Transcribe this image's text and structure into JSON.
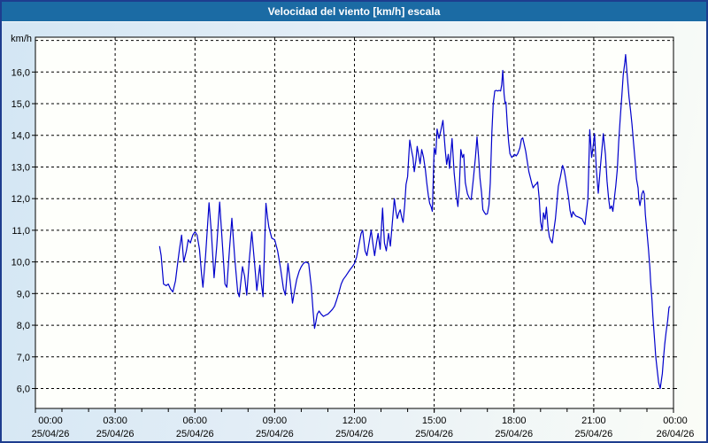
{
  "window": {
    "title": "Velocidad del viento [km/h] escala"
  },
  "colors": {
    "titlebar_bg": "#1b6ba4",
    "titlebar_text": "#ffffff",
    "window_border": "#1e3d8f",
    "bg_gradient_left": "#d3e6f4",
    "bg_gradient_right": "#fbfdf7",
    "plot_bg": "#fefffb",
    "grid_color": "#000000",
    "line_color": "#0000cc",
    "axis_text": "#000000"
  },
  "chart_data": {
    "type": "line",
    "title": "Velocidad del viento [km/h] escala",
    "unit_label": "km/h",
    "grid_style": "dashed",
    "legend": "none",
    "x_range_hours": [
      0,
      24
    ],
    "x_minor_tick_hours": 1,
    "x_major_ticks": [
      {
        "hours": 0,
        "time": "00:00",
        "date": "25/04/26"
      },
      {
        "hours": 3,
        "time": "03:00",
        "date": "25/04/26"
      },
      {
        "hours": 6,
        "time": "06:00",
        "date": "25/04/26"
      },
      {
        "hours": 9,
        "time": "09:00",
        "date": "25/04/26"
      },
      {
        "hours": 12,
        "time": "12:00",
        "date": "25/04/26"
      },
      {
        "hours": 15,
        "time": "15:00",
        "date": "25/04/26"
      },
      {
        "hours": 18,
        "time": "18:00",
        "date": "25/04/26"
      },
      {
        "hours": 21,
        "time": "21:00",
        "date": "25/04/26"
      },
      {
        "hours": 24,
        "time": "00:00",
        "date": "26/04/26"
      }
    ],
    "y_ticks": [
      {
        "value": 16,
        "label": "16,0"
      },
      {
        "value": 15,
        "label": "15,0"
      },
      {
        "value": 14,
        "label": "14,0"
      },
      {
        "value": 13,
        "label": "13,0"
      },
      {
        "value": 12,
        "label": "12,0"
      },
      {
        "value": 11,
        "label": "11,0"
      },
      {
        "value": 10,
        "label": "10,0"
      },
      {
        "value": 9,
        "label": "9,0"
      },
      {
        "value": 8,
        "label": "8,0"
      },
      {
        "value": 7,
        "label": "7,0"
      },
      {
        "value": 6,
        "label": "6,0"
      }
    ],
    "y_gridline_values": [
      17,
      16,
      15,
      14,
      13,
      12,
      11,
      10,
      9,
      8,
      7,
      6
    ],
    "y_top_value": 17.1,
    "y_bottom_value": 5.37,
    "series": [
      {
        "name": "Velocidad del viento",
        "color": "#0000cc",
        "points": [
          [
            4.67,
            10.5
          ],
          [
            4.73,
            10.2
          ],
          [
            4.82,
            9.3
          ],
          [
            4.92,
            9.25
          ],
          [
            5.0,
            9.3
          ],
          [
            5.08,
            9.15
          ],
          [
            5.17,
            9.05
          ],
          [
            5.27,
            9.4
          ],
          [
            5.35,
            9.95
          ],
          [
            5.42,
            10.4
          ],
          [
            5.5,
            10.85
          ],
          [
            5.58,
            10.0
          ],
          [
            5.68,
            10.35
          ],
          [
            5.75,
            10.7
          ],
          [
            5.83,
            10.6
          ],
          [
            5.92,
            10.85
          ],
          [
            6.0,
            10.95
          ],
          [
            6.08,
            10.85
          ],
          [
            6.17,
            10.4
          ],
          [
            6.25,
            9.6
          ],
          [
            6.3,
            9.2
          ],
          [
            6.4,
            10.2
          ],
          [
            6.47,
            11.1
          ],
          [
            6.53,
            11.87
          ],
          [
            6.62,
            10.9
          ],
          [
            6.72,
            9.5
          ],
          [
            6.82,
            10.5
          ],
          [
            6.93,
            11.89
          ],
          [
            7.03,
            10.6
          ],
          [
            7.13,
            9.3
          ],
          [
            7.2,
            9.2
          ],
          [
            7.3,
            10.4
          ],
          [
            7.39,
            11.38
          ],
          [
            7.5,
            10.1
          ],
          [
            7.61,
            9.05
          ],
          [
            7.67,
            8.9
          ],
          [
            7.79,
            9.85
          ],
          [
            7.87,
            9.55
          ],
          [
            7.95,
            8.95
          ],
          [
            8.05,
            10.1
          ],
          [
            8.14,
            10.95
          ],
          [
            8.24,
            10.0
          ],
          [
            8.33,
            9.1
          ],
          [
            8.44,
            9.9
          ],
          [
            8.5,
            9.3
          ],
          [
            8.56,
            8.9
          ],
          [
            8.67,
            11.85
          ],
          [
            8.73,
            11.4
          ],
          [
            8.78,
            11.1
          ],
          [
            8.89,
            10.75
          ],
          [
            9.0,
            10.7
          ],
          [
            9.11,
            10.35
          ],
          [
            9.22,
            9.8
          ],
          [
            9.33,
            9.15
          ],
          [
            9.4,
            8.95
          ],
          [
            9.5,
            9.95
          ],
          [
            9.58,
            9.4
          ],
          [
            9.67,
            8.7
          ],
          [
            9.75,
            9.1
          ],
          [
            9.83,
            9.45
          ],
          [
            9.92,
            9.7
          ],
          [
            10.0,
            9.85
          ],
          [
            10.08,
            9.95
          ],
          [
            10.17,
            10.0
          ],
          [
            10.28,
            9.95
          ],
          [
            10.38,
            9.2
          ],
          [
            10.45,
            8.4
          ],
          [
            10.5,
            7.9
          ],
          [
            10.55,
            8.1
          ],
          [
            10.6,
            8.35
          ],
          [
            10.67,
            8.45
          ],
          [
            10.75,
            8.35
          ],
          [
            10.83,
            8.28
          ],
          [
            10.92,
            8.32
          ],
          [
            11.0,
            8.35
          ],
          [
            11.08,
            8.42
          ],
          [
            11.17,
            8.5
          ],
          [
            11.25,
            8.6
          ],
          [
            11.33,
            8.8
          ],
          [
            11.42,
            9.05
          ],
          [
            11.5,
            9.3
          ],
          [
            11.58,
            9.45
          ],
          [
            11.67,
            9.55
          ],
          [
            11.75,
            9.65
          ],
          [
            11.83,
            9.75
          ],
          [
            11.92,
            9.85
          ],
          [
            12.0,
            9.95
          ],
          [
            12.08,
            10.15
          ],
          [
            12.17,
            10.55
          ],
          [
            12.25,
            10.9
          ],
          [
            12.31,
            11.0
          ],
          [
            12.4,
            10.35
          ],
          [
            12.47,
            10.2
          ],
          [
            12.55,
            10.6
          ],
          [
            12.63,
            11.0
          ],
          [
            12.7,
            10.55
          ],
          [
            12.76,
            10.2
          ],
          [
            12.83,
            10.6
          ],
          [
            12.89,
            10.9
          ],
          [
            12.97,
            10.4
          ],
          [
            13.06,
            11.7
          ],
          [
            13.13,
            10.6
          ],
          [
            13.2,
            10.35
          ],
          [
            13.28,
            10.9
          ],
          [
            13.35,
            10.5
          ],
          [
            13.42,
            11.2
          ],
          [
            13.5,
            12.0
          ],
          [
            13.56,
            11.6
          ],
          [
            13.61,
            11.37
          ],
          [
            13.67,
            11.55
          ],
          [
            13.72,
            11.65
          ],
          [
            13.78,
            11.4
          ],
          [
            13.83,
            11.25
          ],
          [
            13.89,
            11.8
          ],
          [
            13.94,
            12.45
          ],
          [
            14.0,
            12.7
          ],
          [
            14.04,
            13.3
          ],
          [
            14.08,
            13.85
          ],
          [
            14.14,
            13.55
          ],
          [
            14.2,
            13.3
          ],
          [
            14.25,
            12.85
          ],
          [
            14.31,
            13.2
          ],
          [
            14.36,
            13.65
          ],
          [
            14.42,
            13.35
          ],
          [
            14.47,
            13.1
          ],
          [
            14.53,
            13.55
          ],
          [
            14.6,
            13.3
          ],
          [
            14.67,
            12.9
          ],
          [
            14.72,
            12.5
          ],
          [
            14.78,
            12.1
          ],
          [
            14.83,
            11.85
          ],
          [
            14.89,
            11.73
          ],
          [
            14.93,
            11.6
          ],
          [
            15.0,
            13.6
          ],
          [
            15.06,
            13.4
          ],
          [
            15.11,
            14.2
          ],
          [
            15.18,
            13.9
          ],
          [
            15.25,
            14.15
          ],
          [
            15.33,
            14.47
          ],
          [
            15.42,
            13.5
          ],
          [
            15.47,
            13.08
          ],
          [
            15.53,
            13.4
          ],
          [
            15.58,
            12.95
          ],
          [
            15.67,
            13.9
          ],
          [
            15.75,
            12.8
          ],
          [
            15.83,
            12.1
          ],
          [
            15.89,
            11.75
          ],
          [
            15.94,
            12.3
          ],
          [
            16.0,
            13.55
          ],
          [
            16.06,
            13.3
          ],
          [
            16.11,
            13.4
          ],
          [
            16.17,
            12.5
          ],
          [
            16.25,
            12.15
          ],
          [
            16.33,
            12.0
          ],
          [
            16.39,
            11.97
          ],
          [
            16.47,
            12.6
          ],
          [
            16.55,
            13.3
          ],
          [
            16.61,
            13.95
          ],
          [
            16.67,
            13.3
          ],
          [
            16.72,
            12.66
          ],
          [
            16.78,
            12.2
          ],
          [
            16.83,
            11.65
          ],
          [
            16.89,
            11.56
          ],
          [
            16.94,
            11.5
          ],
          [
            17.0,
            11.52
          ],
          [
            17.06,
            11.8
          ],
          [
            17.11,
            12.5
          ],
          [
            17.17,
            14.1
          ],
          [
            17.22,
            15.0
          ],
          [
            17.28,
            15.4
          ],
          [
            17.33,
            15.42
          ],
          [
            17.39,
            15.4
          ],
          [
            17.44,
            15.42
          ],
          [
            17.5,
            15.4
          ],
          [
            17.54,
            15.6
          ],
          [
            17.58,
            16.05
          ],
          [
            17.63,
            15.3
          ],
          [
            17.67,
            15.0
          ],
          [
            17.7,
            15.05
          ],
          [
            17.75,
            14.35
          ],
          [
            17.8,
            13.8
          ],
          [
            17.85,
            13.42
          ],
          [
            17.92,
            13.3
          ],
          [
            17.97,
            13.35
          ],
          [
            18.03,
            13.4
          ],
          [
            18.08,
            13.35
          ],
          [
            18.14,
            13.42
          ],
          [
            18.22,
            13.6
          ],
          [
            18.28,
            13.88
          ],
          [
            18.33,
            13.92
          ],
          [
            18.44,
            13.5
          ],
          [
            18.56,
            12.85
          ],
          [
            18.67,
            12.48
          ],
          [
            18.72,
            12.34
          ],
          [
            18.78,
            12.42
          ],
          [
            18.83,
            12.45
          ],
          [
            18.89,
            12.53
          ],
          [
            18.95,
            12.0
          ],
          [
            19.0,
            11.27
          ],
          [
            19.06,
            11.0
          ],
          [
            19.11,
            11.55
          ],
          [
            19.17,
            11.35
          ],
          [
            19.22,
            11.73
          ],
          [
            19.28,
            11.1
          ],
          [
            19.33,
            10.8
          ],
          [
            19.39,
            10.66
          ],
          [
            19.44,
            10.6
          ],
          [
            19.5,
            11.0
          ],
          [
            19.56,
            11.36
          ],
          [
            19.67,
            12.39
          ],
          [
            19.75,
            12.7
          ],
          [
            19.83,
            13.05
          ],
          [
            19.89,
            12.9
          ],
          [
            19.94,
            12.66
          ],
          [
            20.06,
            12.0
          ],
          [
            20.11,
            11.63
          ],
          [
            20.17,
            11.41
          ],
          [
            20.22,
            11.59
          ],
          [
            20.28,
            11.5
          ],
          [
            20.33,
            11.45
          ],
          [
            20.44,
            11.41
          ],
          [
            20.56,
            11.36
          ],
          [
            20.61,
            11.27
          ],
          [
            20.67,
            11.18
          ],
          [
            20.78,
            12.0
          ],
          [
            20.85,
            14.18
          ],
          [
            20.92,
            13.3
          ],
          [
            20.97,
            13.6
          ],
          [
            21.03,
            14.05
          ],
          [
            21.1,
            12.9
          ],
          [
            21.17,
            12.17
          ],
          [
            21.25,
            13.0
          ],
          [
            21.36,
            14.05
          ],
          [
            21.44,
            13.4
          ],
          [
            21.5,
            12.56
          ],
          [
            21.56,
            12.0
          ],
          [
            21.61,
            11.68
          ],
          [
            21.67,
            11.77
          ],
          [
            21.72,
            11.6
          ],
          [
            21.83,
            12.4
          ],
          [
            21.89,
            12.95
          ],
          [
            21.94,
            13.8
          ],
          [
            22.0,
            14.57
          ],
          [
            22.06,
            15.27
          ],
          [
            22.11,
            15.9
          ],
          [
            22.17,
            16.3
          ],
          [
            22.2,
            16.55
          ],
          [
            22.25,
            16.0
          ],
          [
            22.28,
            15.7
          ],
          [
            22.33,
            15.2
          ],
          [
            22.39,
            14.76
          ],
          [
            22.44,
            14.35
          ],
          [
            22.5,
            13.75
          ],
          [
            22.56,
            13.18
          ],
          [
            22.61,
            12.62
          ],
          [
            22.67,
            12.34
          ],
          [
            22.7,
            11.97
          ],
          [
            22.74,
            11.78
          ],
          [
            22.81,
            12.15
          ],
          [
            22.86,
            12.25
          ],
          [
            22.9,
            12.15
          ],
          [
            22.94,
            11.5
          ],
          [
            23.0,
            10.95
          ],
          [
            23.06,
            10.38
          ],
          [
            23.11,
            9.82
          ],
          [
            23.14,
            9.36
          ],
          [
            23.19,
            8.8
          ],
          [
            23.22,
            8.33
          ],
          [
            23.26,
            7.86
          ],
          [
            23.3,
            7.4
          ],
          [
            23.33,
            7.02
          ],
          [
            23.39,
            6.56
          ],
          [
            23.44,
            6.19
          ],
          [
            23.5,
            6.0
          ],
          [
            23.58,
            6.47
          ],
          [
            23.63,
            7.02
          ],
          [
            23.67,
            7.4
          ],
          [
            23.72,
            7.77
          ],
          [
            23.78,
            8.14
          ],
          [
            23.83,
            8.56
          ],
          [
            23.87,
            8.6
          ]
        ]
      }
    ]
  }
}
